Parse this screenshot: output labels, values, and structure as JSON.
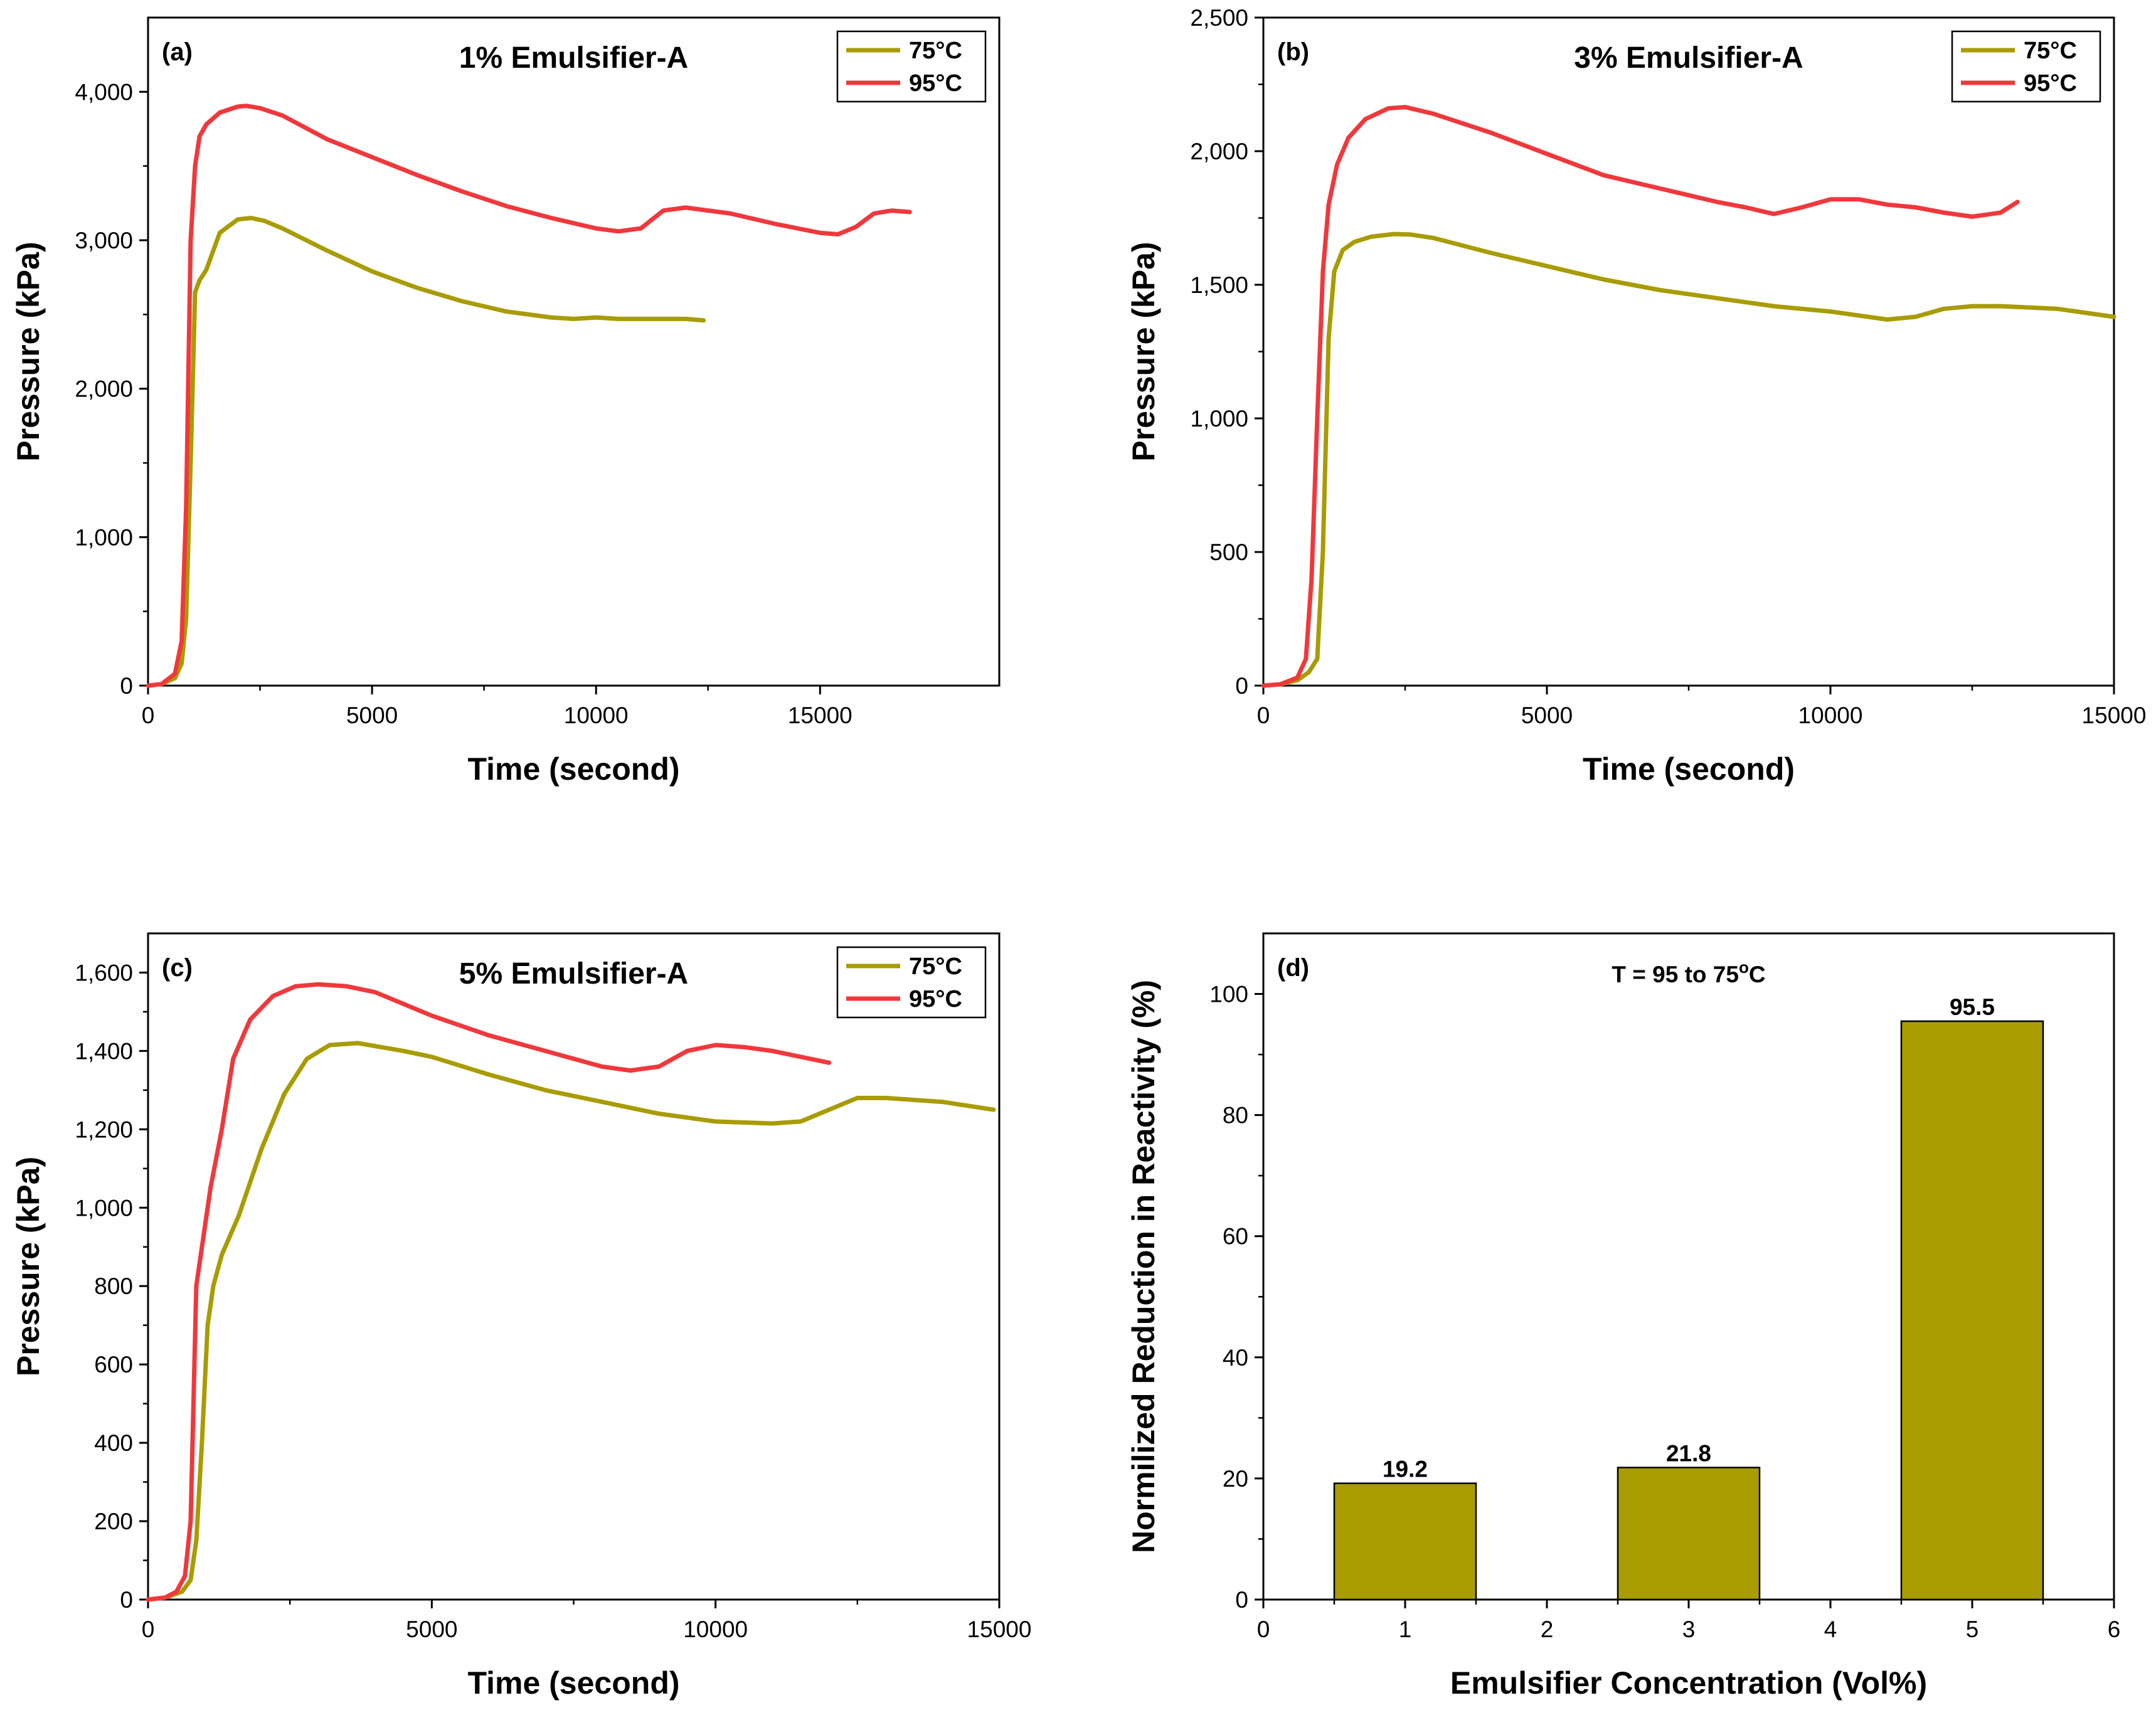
{
  "chart_data": [
    {
      "panel": "(a)",
      "type": "line",
      "title": "1% Emulsifier-A",
      "xlabel": "Time (second)",
      "ylabel": "Pressure (kPa)",
      "xlim": [
        0,
        19000
      ],
      "ylim": [
        0,
        4500
      ],
      "xticks": [
        0,
        5000,
        10000,
        15000
      ],
      "xtick_labels": [
        "0",
        "5000",
        "10000",
        "15000"
      ],
      "yticks": [
        0,
        1000,
        2000,
        3000,
        4000
      ],
      "ytick_labels": [
        "0",
        "1,000",
        "2,000",
        "3,000",
        "4,000"
      ],
      "legend": {
        "position": "top-right",
        "entries": [
          "75°C",
          "95°C"
        ]
      },
      "series": [
        {
          "name": "75°C",
          "color": "#a89c00",
          "x": [
            0,
            300,
            600,
            750,
            850,
            950,
            1050,
            1150,
            1300,
            1600,
            2000,
            2300,
            2600,
            3000,
            4000,
            5000,
            6000,
            7000,
            8000,
            9000,
            9500,
            10000,
            10500,
            11000,
            11500,
            12000,
            12400
          ],
          "y": [
            0,
            10,
            50,
            150,
            450,
            1500,
            2650,
            2730,
            2800,
            3050,
            3140,
            3150,
            3130,
            3080,
            2930,
            2790,
            2680,
            2590,
            2520,
            2480,
            2470,
            2480,
            2470,
            2470,
            2470,
            2470,
            2460
          ]
        },
        {
          "name": "95°C",
          "color": "#f0383c",
          "x": [
            0,
            300,
            600,
            750,
            850,
            950,
            1050,
            1150,
            1300,
            1600,
            2000,
            2200,
            2500,
            3000,
            4000,
            5000,
            6000,
            7000,
            8000,
            9000,
            10000,
            10500,
            11000,
            11500,
            12000,
            13000,
            14000,
            15000,
            15400,
            15800,
            16200,
            16600,
            17000
          ],
          "y": [
            0,
            10,
            80,
            300,
            1200,
            3000,
            3500,
            3700,
            3780,
            3860,
            3900,
            3905,
            3890,
            3840,
            3680,
            3560,
            3440,
            3330,
            3230,
            3150,
            3080,
            3060,
            3080,
            3200,
            3220,
            3180,
            3110,
            3050,
            3040,
            3090,
            3180,
            3200,
            3190
          ]
        }
      ]
    },
    {
      "panel": "(b)",
      "type": "line",
      "title": "3% Emulsifier-A",
      "xlabel": "Time (second)",
      "ylabel": "Pressure (kPa)",
      "xlim": [
        0,
        15000
      ],
      "ylim": [
        0,
        2500
      ],
      "xticks": [
        0,
        5000,
        10000,
        15000
      ],
      "xtick_labels": [
        "0",
        "5000",
        "10000",
        "15000"
      ],
      "yticks": [
        0,
        500,
        1000,
        1500,
        2000,
        2500
      ],
      "ytick_labels": [
        "0",
        "500",
        "1,000",
        "1,500",
        "2,000",
        "2,500"
      ],
      "legend": {
        "position": "top-right",
        "entries": [
          "75°C",
          "95°C"
        ]
      },
      "series": [
        {
          "name": "75°C",
          "color": "#a89c00",
          "x": [
            0,
            300,
            600,
            800,
            950,
            1050,
            1150,
            1250,
            1400,
            1600,
            1900,
            2300,
            2600,
            3000,
            4000,
            5000,
            6000,
            7000,
            8000,
            9000,
            10000,
            10500,
            11000,
            11500,
            12000,
            12500,
            13000,
            14000,
            15000
          ],
          "y": [
            0,
            5,
            20,
            50,
            100,
            500,
            1300,
            1550,
            1630,
            1660,
            1680,
            1690,
            1688,
            1675,
            1620,
            1570,
            1520,
            1480,
            1450,
            1420,
            1400,
            1385,
            1370,
            1380,
            1410,
            1420,
            1420,
            1410,
            1380
          ]
        },
        {
          "name": "95°C",
          "color": "#f0383c",
          "x": [
            0,
            300,
            600,
            750,
            850,
            950,
            1050,
            1150,
            1300,
            1500,
            1800,
            2200,
            2500,
            3000,
            4000,
            5000,
            6000,
            7000,
            8000,
            8500,
            9000,
            9500,
            10000,
            10500,
            11000,
            11500,
            12000,
            12500,
            13000,
            13300
          ],
          "y": [
            0,
            5,
            30,
            100,
            400,
            1000,
            1550,
            1800,
            1950,
            2050,
            2120,
            2160,
            2165,
            2140,
            2070,
            1990,
            1910,
            1860,
            1810,
            1790,
            1765,
            1790,
            1820,
            1820,
            1800,
            1790,
            1770,
            1755,
            1770,
            1810
          ]
        }
      ]
    },
    {
      "panel": "(c)",
      "type": "line",
      "title": "5% Emulsifier-A",
      "xlabel": "Time (second)",
      "ylabel": "Pressure (kPa)",
      "xlim": [
        0,
        15000
      ],
      "ylim": [
        0,
        1700
      ],
      "xticks": [
        0,
        5000,
        10000,
        15000
      ],
      "xtick_labels": [
        "0",
        "5000",
        "10000",
        "15000"
      ],
      "yticks": [
        0,
        200,
        400,
        600,
        800,
        1000,
        1200,
        1400,
        1600
      ],
      "ytick_labels": [
        "0",
        "200",
        "400",
        "600",
        "800",
        "1,000",
        "1,200",
        "1,400",
        "1,600"
      ],
      "legend": {
        "position": "top-right",
        "entries": [
          "75°C",
          "95°C"
        ]
      },
      "series": [
        {
          "name": "75°C",
          "color": "#a89c00",
          "x": [
            0,
            300,
            600,
            750,
            850,
            950,
            1050,
            1150,
            1300,
            1600,
            2000,
            2400,
            2800,
            3200,
            3700,
            4500,
            5000,
            6000,
            7000,
            8000,
            9000,
            10000,
            11000,
            11500,
            12000,
            12500,
            13000,
            14000,
            14900
          ],
          "y": [
            0,
            5,
            20,
            50,
            150,
            400,
            700,
            800,
            880,
            980,
            1150,
            1290,
            1380,
            1415,
            1420,
            1400,
            1385,
            1340,
            1300,
            1270,
            1240,
            1220,
            1215,
            1220,
            1250,
            1280,
            1280,
            1270,
            1250
          ]
        },
        {
          "name": "95°C",
          "color": "#f0383c",
          "x": [
            0,
            300,
            500,
            650,
            750,
            800,
            850,
            900,
            1000,
            1100,
            1300,
            1500,
            1800,
            2200,
            2600,
            3000,
            3500,
            4000,
            5000,
            6000,
            7000,
            8000,
            8500,
            9000,
            9500,
            10000,
            10500,
            11000,
            11500,
            12000
          ],
          "y": [
            0,
            5,
            20,
            60,
            200,
            500,
            800,
            850,
            950,
            1050,
            1200,
            1380,
            1480,
            1540,
            1565,
            1570,
            1565,
            1550,
            1490,
            1440,
            1400,
            1360,
            1350,
            1360,
            1400,
            1415,
            1410,
            1400,
            1385,
            1370
          ]
        }
      ]
    },
    {
      "panel": "(d)",
      "type": "bar",
      "annotation": "T = 95 to 75",
      "annotation_sup": "o",
      "annotation_suffix": "C",
      "xlabel": "Emulsifier Concentration (Vol%)",
      "ylabel": "Normilized Reduction in Reactivity (%)",
      "xlim": [
        0,
        6
      ],
      "ylim": [
        0,
        110
      ],
      "xticks": [
        0,
        1,
        2,
        3,
        4,
        5,
        6
      ],
      "xtick_labels": [
        "0",
        "1",
        "2",
        "3",
        "4",
        "5",
        "6"
      ],
      "yticks": [
        0,
        20,
        40,
        60,
        80,
        100
      ],
      "ytick_labels": [
        "0",
        "20",
        "40",
        "60",
        "80",
        "100"
      ],
      "bar_color": "#a89c00",
      "bar_width": 1,
      "categories": [
        1,
        3,
        5
      ],
      "values": [
        19.2,
        21.8,
        95.5
      ],
      "value_labels": [
        "19.2",
        "21.8",
        "95.5"
      ]
    }
  ]
}
